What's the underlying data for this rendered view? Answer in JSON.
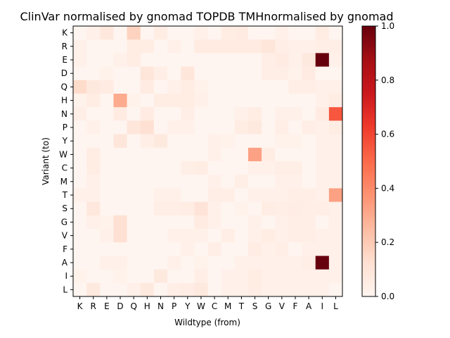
{
  "chart_data": {
    "type": "heatmap",
    "title": "ClinVar normalised by gnomad TOPDB TMHnormalised by gnomad",
    "xlabel": "Wildtype (from)",
    "ylabel": "Variant (to)",
    "x_categories": [
      "K",
      "R",
      "E",
      "D",
      "Q",
      "H",
      "N",
      "P",
      "Y",
      "W",
      "C",
      "M",
      "T",
      "S",
      "G",
      "V",
      "F",
      "A",
      "I",
      "L"
    ],
    "y_categories": [
      "K",
      "R",
      "E",
      "D",
      "Q",
      "H",
      "N",
      "P",
      "Y",
      "W",
      "C",
      "M",
      "T",
      "S",
      "G",
      "V",
      "F",
      "A",
      "I",
      "L"
    ],
    "colorbar": {
      "min": 0.0,
      "max": 1.0,
      "ticks": [
        "0.0",
        "0.2",
        "0.4",
        "0.6",
        "0.8",
        "1.0"
      ],
      "colormap": "Reds"
    },
    "values": [
      [
        0,
        0.03,
        0.08,
        0,
        0.17,
        0,
        0.05,
        0,
        0,
        0.03,
        0,
        0.05,
        0.06,
        0,
        0,
        0.03,
        0,
        0,
        0.05,
        0
      ],
      [
        0.03,
        0,
        0,
        0,
        0.05,
        0.05,
        0,
        0.03,
        0,
        0.06,
        0.06,
        0.06,
        0.06,
        0.06,
        0.09,
        0.04,
        0.03,
        0.03,
        0.04,
        0.04
      ],
      [
        0.03,
        0,
        0,
        0.03,
        0.05,
        0,
        0,
        0,
        0,
        0,
        0,
        0,
        0,
        0,
        0.04,
        0.06,
        0.03,
        0.07,
        1.0,
        0.03
      ],
      [
        0,
        0,
        0.02,
        0,
        0,
        0.09,
        0.04,
        0,
        0.09,
        0,
        0,
        0,
        0,
        0,
        0.04,
        0.04,
        0.02,
        0.06,
        0,
        0
      ],
      [
        0.14,
        0.07,
        0.06,
        0,
        0,
        0.06,
        0,
        0.03,
        0.05,
        0.02,
        0,
        0,
        0,
        0,
        0,
        0,
        0.04,
        0.04,
        0.03,
        0.03
      ],
      [
        0.02,
        0.05,
        0,
        0.3,
        0.02,
        0,
        0.05,
        0.05,
        0.05,
        0.03,
        0,
        0,
        0,
        0,
        0,
        0,
        0,
        0,
        0.03,
        0.05
      ],
      [
        0.04,
        0,
        0,
        0.06,
        0,
        0.06,
        0,
        0,
        0.04,
        0,
        0,
        0,
        0.03,
        0.05,
        0,
        0.03,
        0.03,
        0,
        0.06,
        0.55
      ],
      [
        0,
        0.03,
        0,
        0,
        0.09,
        0.12,
        0,
        0.03,
        0.03,
        0,
        0,
        0,
        0.05,
        0.07,
        0,
        0.04,
        0,
        0.04,
        0.03,
        0.05
      ],
      [
        0,
        0,
        0,
        0.09,
        0,
        0.04,
        0.07,
        0,
        0,
        0,
        0.03,
        0.02,
        0,
        0,
        0,
        0.02,
        0.02,
        0,
        0.03,
        0.03
      ],
      [
        0,
        0.05,
        0,
        0,
        0,
        0,
        0,
        0,
        0,
        0,
        0.03,
        0,
        0,
        0.33,
        0.05,
        0,
        0,
        0,
        0.03,
        0.03
      ],
      [
        0,
        0.05,
        0,
        0,
        0,
        0,
        0,
        0,
        0.04,
        0.05,
        0,
        0,
        0,
        0.03,
        0.03,
        0.04,
        0.04,
        0,
        0.03,
        0.03
      ],
      [
        0,
        0.03,
        0,
        0,
        0,
        0,
        0,
        0,
        0,
        0,
        0.03,
        0,
        0.04,
        0,
        0,
        0.03,
        0.03,
        0,
        0.03,
        0.03
      ],
      [
        0.03,
        0.03,
        0,
        0,
        0,
        0,
        0.03,
        0.03,
        0,
        0,
        0.04,
        0.04,
        0,
        0.03,
        0.03,
        0.03,
        0.04,
        0.04,
        0.03,
        0.33
      ],
      [
        0,
        0.08,
        0,
        0,
        0,
        0,
        0.04,
        0.04,
        0.05,
        0.1,
        0.03,
        0,
        0.02,
        0,
        0.05,
        0.04,
        0.05,
        0.04,
        0.04,
        0.03
      ],
      [
        0,
        0.03,
        0.02,
        0.12,
        0,
        0,
        0,
        0,
        0,
        0.06,
        0.03,
        0,
        0,
        0.03,
        0,
        0.03,
        0.04,
        0.04,
        0,
        0.03
      ],
      [
        0,
        0,
        0.03,
        0.12,
        0,
        0,
        0,
        0.03,
        0.03,
        0.03,
        0,
        0.04,
        0,
        0.03,
        0.05,
        0.03,
        0.04,
        0.04,
        0.03,
        0.03
      ],
      [
        0,
        0,
        0,
        0,
        0,
        0,
        0,
        0,
        0.03,
        0,
        0.04,
        0,
        0,
        0.05,
        0.03,
        0.04,
        0,
        0.03,
        0.03,
        0.03
      ],
      [
        0,
        0,
        0.03,
        0.03,
        0,
        0,
        0,
        0.03,
        0,
        0.02,
        0,
        0,
        0.03,
        0.03,
        0.03,
        0.03,
        0.03,
        0.04,
        1.0,
        0.03
      ],
      [
        0.02,
        0,
        0,
        0.02,
        0,
        0,
        0.07,
        0,
        0,
        0.04,
        0,
        0.03,
        0.03,
        0.05,
        0.03,
        0.03,
        0.03,
        0.03,
        0.03,
        0.03
      ],
      [
        0,
        0.07,
        0,
        0,
        0.03,
        0.07,
        0,
        0.04,
        0.05,
        0.07,
        0,
        0.03,
        0.03,
        0.05,
        0.03,
        0.03,
        0.03,
        0.03,
        0.03,
        0
      ]
    ]
  }
}
